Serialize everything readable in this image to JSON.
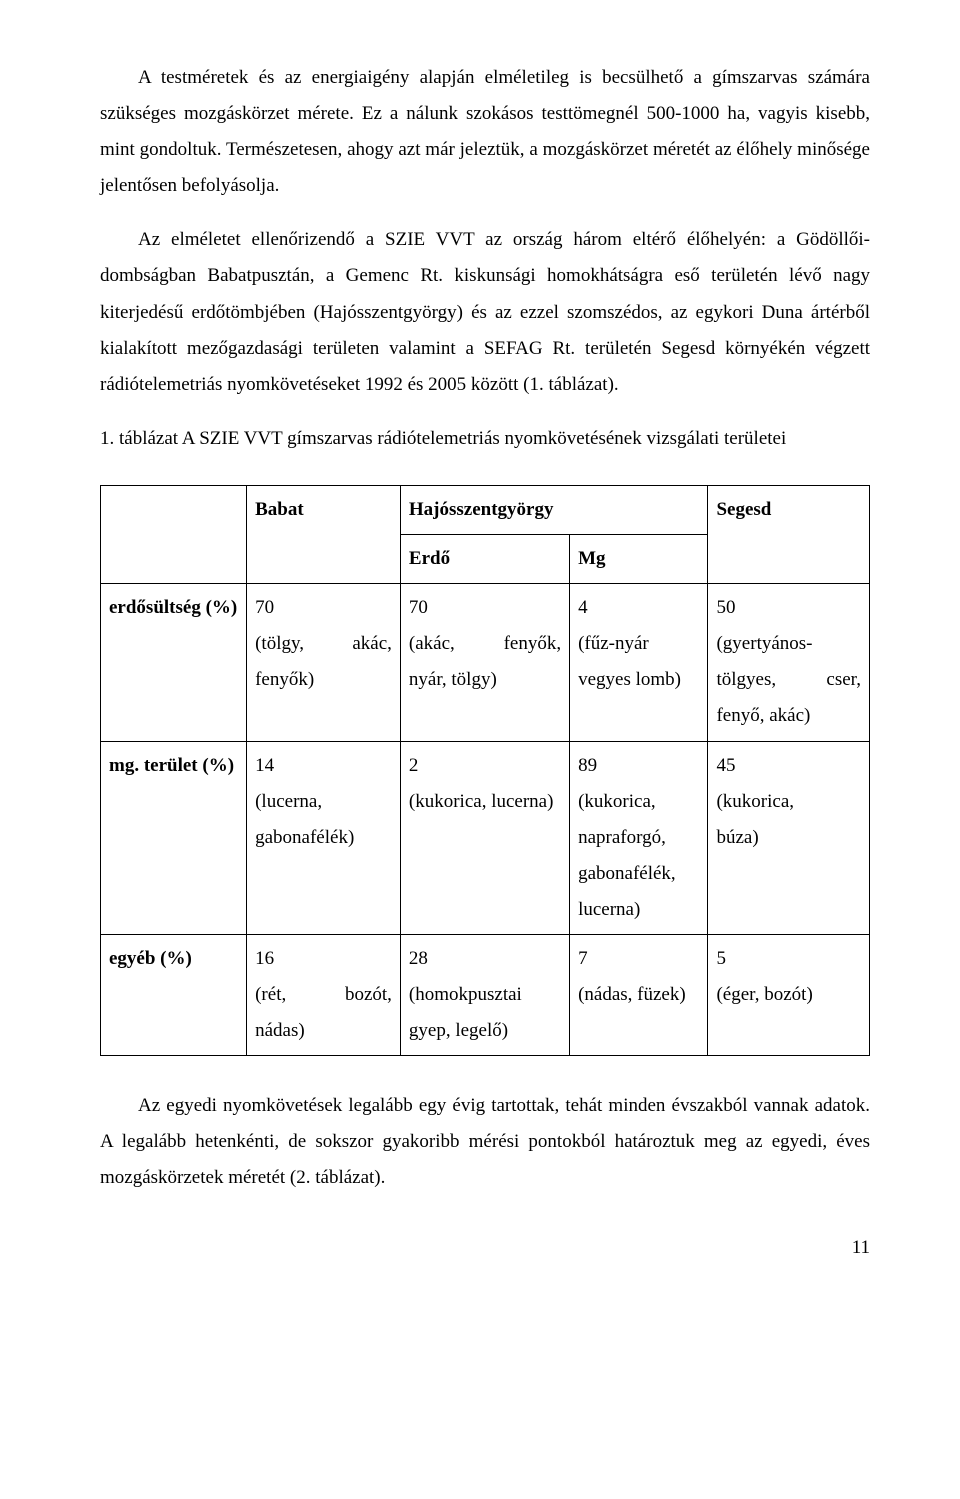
{
  "colors": {
    "background": "#ffffff",
    "text": "#000000",
    "border": "#000000"
  },
  "typography": {
    "body_fontsize_pt": 14,
    "font_family": "Times New Roman"
  },
  "paragraph1": "A testméretek és az energiaigény alapján elméletileg is becsülhető a gímszarvas számára szükséges mozgáskörzet mérete. Ez a nálunk szokásos testtömegnél 500-1000 ha, vagyis kisebb, mint gondoltuk. Természetesen, ahogy azt már jeleztük, a mozgáskörzet méretét az élőhely minősége jelentősen befolyásolja.",
  "paragraph2": "Az elméletet ellenőrizendő a SZIE VVT az ország három eltérő élőhelyén: a Gödöllői-dombságban Babatpusztán, a Gemenc Rt. kiskunsági homokhátságra eső területén lévő nagy kiterjedésű erdőtömbjében (Hajósszentgyörgy) és az ezzel szomszédos, az egykori Duna ártérből kialakított mezőgazdasági területen valamint a SEFAG Rt. területén Segesd környékén végzett rádiótelemetriás nyomkövetéseket 1992 és 2005 között (1. táblázat).",
  "table_caption": "1. táblázat  A SZIE VVT gímszarvas rádiótelemetriás nyomkövetésének vizsgálati területei",
  "table": {
    "type": "table",
    "header": {
      "blank": "",
      "babat": "Babat",
      "hajos": "Hajósszentgyörgy",
      "segesd": "Segesd",
      "erdo": "Erdő",
      "mg": "Mg"
    },
    "rows": {
      "erdo": {
        "label": "erdősültség (%)",
        "babat_val": "70",
        "babat_det_a": "(tölgy,",
        "babat_det_b": "akác,",
        "babat_det2": "fenyők)",
        "erdo_val": "70",
        "erdo_det_a": "(akác,",
        "erdo_det_b": "fenyők,",
        "erdo_det2": "nyár, tölgy)",
        "mg_val": "4",
        "mg_det": "(fűz-nyár",
        "mg_det2": "vegyes lomb)",
        "segesd_val": "50",
        "segesd_det": "(gyertyános-",
        "segesd_det2_a": "tölgyes,",
        "segesd_det2_b": "cser,",
        "segesd_det3": "fenyő, akác)"
      },
      "mgter": {
        "label": "mg. terület (%)",
        "babat_val": "14",
        "babat_det": "(lucerna,",
        "babat_det2": "gabonafélék)",
        "erdo_val": "2",
        "erdo_det": "(kukorica, lucerna)",
        "mg_val": "89",
        "mg_det": "(kukorica,",
        "mg_det2": "napraforgó,",
        "mg_det3": "gabonafélék,",
        "mg_det4": "lucerna)",
        "segesd_val": "45",
        "segesd_det": "(kukorica,",
        "segesd_det2": "búza)"
      },
      "egyeb": {
        "label": "egyéb (%)",
        "babat_val": "16",
        "babat_det_a": "(rét,",
        "babat_det_b": "bozót,",
        "babat_det2": "nádas)",
        "erdo_val": "28",
        "erdo_det": "(homokpusztai",
        "erdo_det2": "gyep, legelő)",
        "mg_val": "7",
        "mg_det": "(nádas, füzek)",
        "segesd_val": "5",
        "segesd_det": "(éger, bozót)"
      }
    }
  },
  "paragraph3": "Az  egyedi nyomkövetések legalább egy évig tartottak, tehát minden évszakból vannak adatok. A legalább hetenkénti, de sokszor gyakoribb mérési pontokból határoztuk meg az egyedi, éves mozgáskörzetek méretét (2. táblázat).",
  "page_number": "11"
}
